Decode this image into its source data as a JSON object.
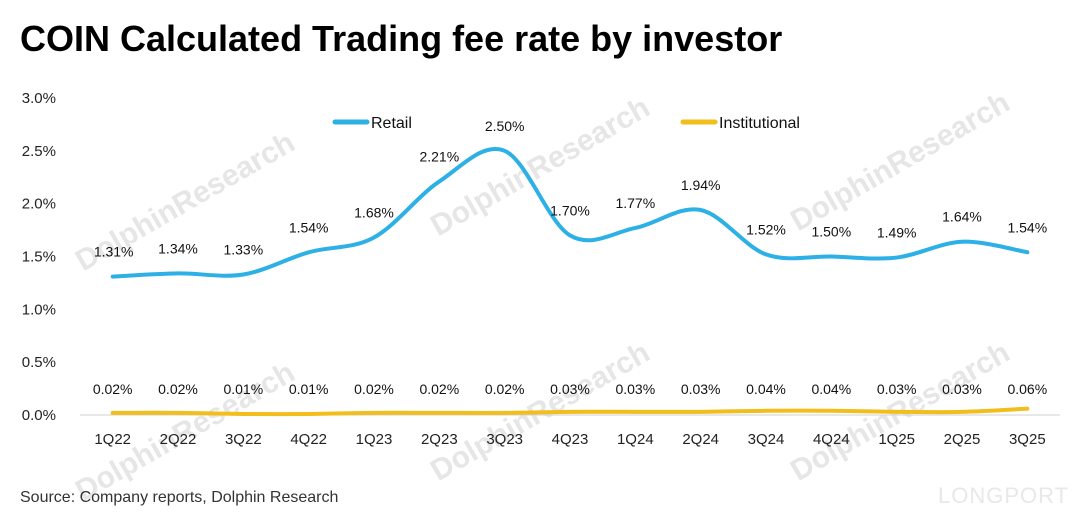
{
  "title": "COIN Calculated Trading fee rate by investor",
  "source": "Source: Company reports, Dolphin Research",
  "watermark": "DolphinResearch",
  "brand": "LONGPORT",
  "chart_data": {
    "type": "line",
    "title": "COIN Calculated Trading fee rate by investor",
    "xlabel": "",
    "ylabel": "",
    "ylim": [
      0,
      3.0
    ],
    "yticks": [
      "0.0%",
      "0.5%",
      "1.0%",
      "1.5%",
      "2.0%",
      "2.5%",
      "3.0%"
    ],
    "legend_position": "top",
    "categories": [
      "1Q22",
      "2Q22",
      "3Q22",
      "4Q22",
      "1Q23",
      "2Q23",
      "3Q23",
      "4Q23",
      "1Q24",
      "2Q24",
      "3Q24",
      "4Q24",
      "1Q25",
      "2Q25",
      "3Q25"
    ],
    "series": [
      {
        "name": "Retail",
        "color": "#2DB0E6",
        "values": [
          1.31,
          1.34,
          1.33,
          1.54,
          1.68,
          2.21,
          2.5,
          1.7,
          1.77,
          1.94,
          1.52,
          1.5,
          1.49,
          1.64,
          1.54
        ],
        "labels": [
          "1.31%",
          "1.34%",
          "1.33%",
          "1.54%",
          "1.68%",
          "2.21%",
          "2.50%",
          "1.70%",
          "1.77%",
          "1.94%",
          "1.52%",
          "1.50%",
          "1.49%",
          "1.64%",
          "1.54%"
        ]
      },
      {
        "name": "Institutional",
        "color": "#F1BE1C",
        "values": [
          0.02,
          0.02,
          0.01,
          0.01,
          0.02,
          0.02,
          0.02,
          0.03,
          0.03,
          0.03,
          0.04,
          0.04,
          0.03,
          0.03,
          0.06
        ],
        "labels": [
          "0.02%",
          "0.02%",
          "0.01%",
          "0.01%",
          "0.02%",
          "0.02%",
          "0.02%",
          "0.03%",
          "0.03%",
          "0.03%",
          "0.04%",
          "0.04%",
          "0.03%",
          "0.03%",
          "0.06%"
        ]
      }
    ]
  }
}
